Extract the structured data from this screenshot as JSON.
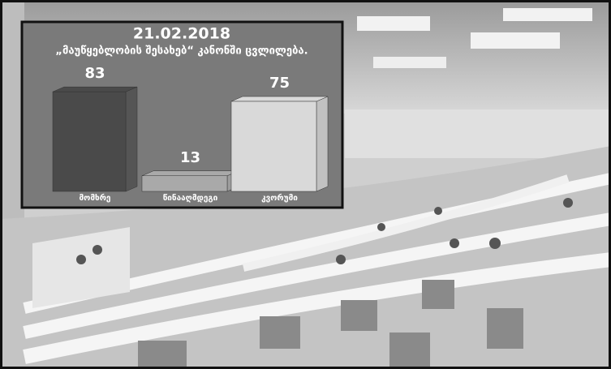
{
  "chart_data": {
    "type": "bar",
    "title": "21.02.2018",
    "subtitle": "„მაუწყებლობის შესახებ“ კანონში ცვლილება.",
    "categories": [
      "მომხრე",
      "წინააღმდეგი",
      "კვორუმი"
    ],
    "values": [
      83,
      13,
      75
    ],
    "colors": [
      "#4a4a4a",
      "#a9a9a9",
      "#d9d9d9"
    ]
  }
}
